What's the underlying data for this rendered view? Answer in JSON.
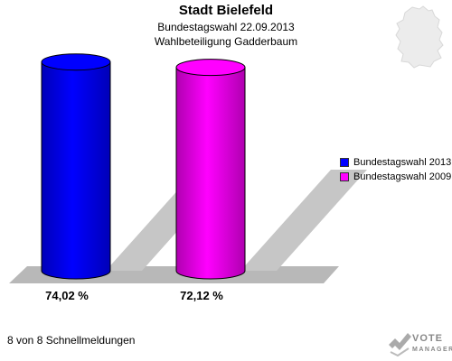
{
  "header": {
    "title": "Stadt Bielefeld",
    "subtitle1": "Bundestagswahl 22.09.2013",
    "subtitle2": "Wahlbeteiligung Gadderbaum"
  },
  "chart_data": {
    "type": "bar",
    "title": "Stadt Bielefeld",
    "subtitle": "Bundestagswahl 22.09.2013 / Wahlbeteiligung Gadderbaum",
    "categories": [
      "Bundestagswahl 2013",
      "Bundestagswahl 2009"
    ],
    "values": [
      74.02,
      72.12
    ],
    "value_labels": [
      "74,02 %",
      "72,12 %"
    ],
    "colors": [
      "#0000ff",
      "#ff00ff"
    ],
    "ylim": [
      0,
      80
    ],
    "legend_position": "right",
    "grid": false
  },
  "legend": {
    "items": [
      {
        "label": "Bundestagswahl 2013",
        "color": "#0000ff"
      },
      {
        "label": "Bundestagswahl 2009",
        "color": "#ff00ff"
      }
    ]
  },
  "footer": {
    "count_text": "8 von 8 Schnellmeldungen",
    "logo_line1": "VOTE",
    "logo_line2": "MANAGER"
  }
}
